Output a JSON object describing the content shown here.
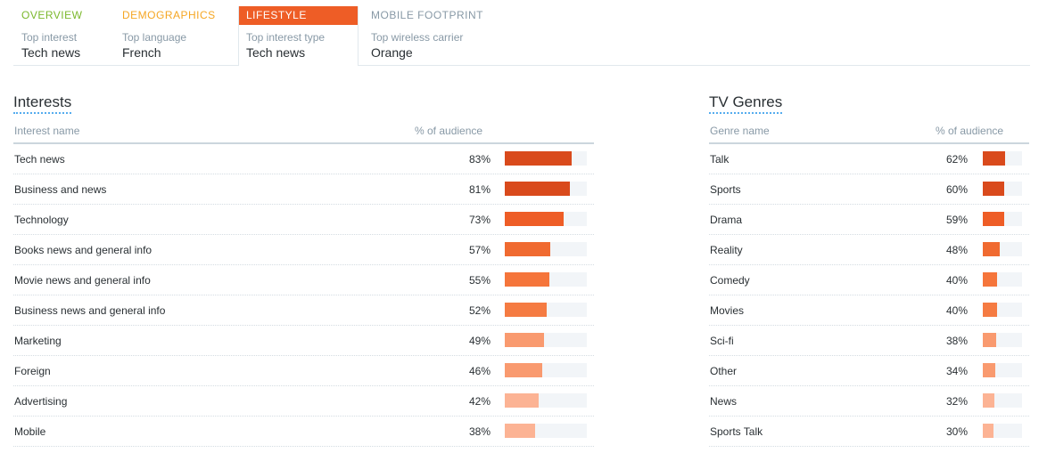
{
  "tabs": [
    {
      "label": "OVERVIEW",
      "sub": "Top interest",
      "value": "Tech news"
    },
    {
      "label": "DEMOGRAPHICS",
      "sub": "Top language",
      "value": "French"
    },
    {
      "label": "LIFESTYLE",
      "sub": "Top interest type",
      "value": "Tech news",
      "active": true
    },
    {
      "label": "MOBILE FOOTPRINT",
      "sub": "Top wireless carrier",
      "value": "Orange"
    }
  ],
  "interests": {
    "title": "Interests",
    "col_name": "Interest name",
    "col_pct": "% of audience",
    "rows": [
      {
        "name": "Tech news",
        "pct": "83%",
        "value": 83
      },
      {
        "name": "Business and news",
        "pct": "81%",
        "value": 81
      },
      {
        "name": "Technology",
        "pct": "73%",
        "value": 73
      },
      {
        "name": "Books news and general info",
        "pct": "57%",
        "value": 57
      },
      {
        "name": "Movie news and general info",
        "pct": "55%",
        "value": 55
      },
      {
        "name": "Business news and general info",
        "pct": "52%",
        "value": 52
      },
      {
        "name": "Marketing",
        "pct": "49%",
        "value": 49
      },
      {
        "name": "Foreign",
        "pct": "46%",
        "value": 46
      },
      {
        "name": "Advertising",
        "pct": "42%",
        "value": 42
      },
      {
        "name": "Mobile",
        "pct": "38%",
        "value": 38
      }
    ]
  },
  "tv_genres": {
    "title": "TV Genres",
    "col_name": "Genre name",
    "col_pct": "% of audience",
    "rows": [
      {
        "name": "Talk",
        "pct": "62%",
        "value": 62
      },
      {
        "name": "Sports",
        "pct": "60%",
        "value": 60
      },
      {
        "name": "Drama",
        "pct": "59%",
        "value": 59
      },
      {
        "name": "Reality",
        "pct": "48%",
        "value": 48
      },
      {
        "name": "Comedy",
        "pct": "40%",
        "value": 40
      },
      {
        "name": "Movies",
        "pct": "40%",
        "value": 40
      },
      {
        "name": "Sci-fi",
        "pct": "38%",
        "value": 38
      },
      {
        "name": "Other",
        "pct": "34%",
        "value": 34
      },
      {
        "name": "News",
        "pct": "32%",
        "value": 32
      },
      {
        "name": "Sports Talk",
        "pct": "30%",
        "value": 30
      }
    ]
  },
  "colors": {
    "accent": "#ee5d26",
    "overview": "#7bb82c",
    "demographics": "#f5a623",
    "bar_shades": [
      "#d94a1c",
      "#d94a1c",
      "#ee5d26",
      "#f06a30",
      "#f5753b",
      "#f57b42",
      "#f99a6f",
      "#f99a6f",
      "#fcb394",
      "#fcb394"
    ]
  }
}
